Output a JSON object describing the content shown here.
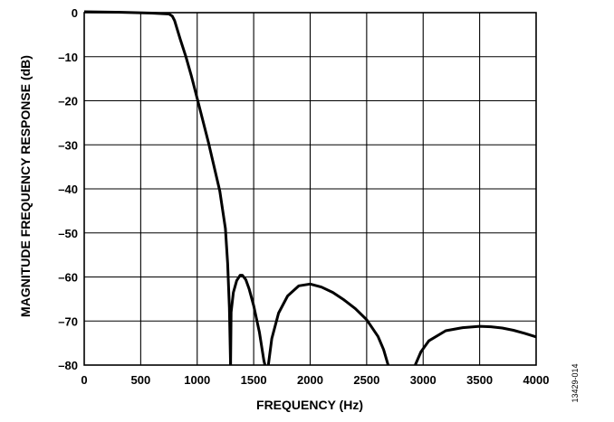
{
  "chart_data": {
    "type": "line",
    "title": "",
    "xlabel": "FREQUENCY (Hz)",
    "ylabel": "MAGNITUDE FREQUENCY RESPONSE (dB)",
    "xlim": [
      0,
      4000
    ],
    "ylim": [
      -80,
      0
    ],
    "grid": true,
    "x_ticks": [
      "0",
      "500",
      "1000",
      "1500",
      "2000",
      "2500",
      "3000",
      "3500",
      "4000"
    ],
    "y_ticks": [
      "0",
      "–10",
      "–20",
      "–30",
      "–40",
      "–50",
      "–60",
      "–70",
      "–80"
    ],
    "series": [
      {
        "segments": [
          [
            [
              0,
              0.2
            ],
            [
              300,
              0.1
            ],
            [
              600,
              -0.1
            ],
            [
              750,
              -0.3
            ],
            [
              780,
              -0.8
            ],
            [
              800,
              -1.8
            ],
            [
              850,
              -6
            ],
            [
              900,
              -10
            ],
            [
              950,
              -14.5
            ],
            [
              1000,
              -19.5
            ],
            [
              1100,
              -29.5
            ],
            [
              1200,
              -40.5
            ],
            [
              1250,
              -49
            ],
            [
              1270,
              -57
            ],
            [
              1285,
              -67
            ],
            [
              1295,
              -80
            ]
          ],
          [
            [
              1295,
              -80
            ],
            [
              1300,
              -68
            ],
            [
              1320,
              -63.5
            ],
            [
              1350,
              -60.8
            ],
            [
              1380,
              -59.6
            ],
            [
              1400,
              -59.6
            ],
            [
              1430,
              -60.6
            ],
            [
              1460,
              -62.7
            ],
            [
              1500,
              -66.5
            ],
            [
              1550,
              -72.5
            ],
            [
              1590,
              -79
            ],
            [
              1600,
              -80
            ]
          ],
          [
            [
              1630,
              -80
            ],
            [
              1660,
              -74
            ],
            [
              1720,
              -68.2
            ],
            [
              1800,
              -64.3
            ],
            [
              1900,
              -62
            ],
            [
              2000,
              -61.6
            ],
            [
              2100,
              -62.3
            ],
            [
              2200,
              -63.5
            ],
            [
              2300,
              -65.2
            ],
            [
              2400,
              -67.2
            ],
            [
              2500,
              -69.7
            ],
            [
              2600,
              -73.5
            ],
            [
              2650,
              -76.5
            ],
            [
              2690,
              -80
            ]
          ],
          [
            [
              2930,
              -80
            ],
            [
              2980,
              -77
            ],
            [
              3050,
              -74.5
            ],
            [
              3200,
              -72.2
            ],
            [
              3350,
              -71.5
            ],
            [
              3500,
              -71.2
            ],
            [
              3600,
              -71.3
            ],
            [
              3700,
              -71.6
            ],
            [
              3800,
              -72.1
            ],
            [
              3900,
              -72.8
            ],
            [
              4000,
              -73.6
            ]
          ]
        ]
      }
    ]
  },
  "figure_code": "13429-014"
}
